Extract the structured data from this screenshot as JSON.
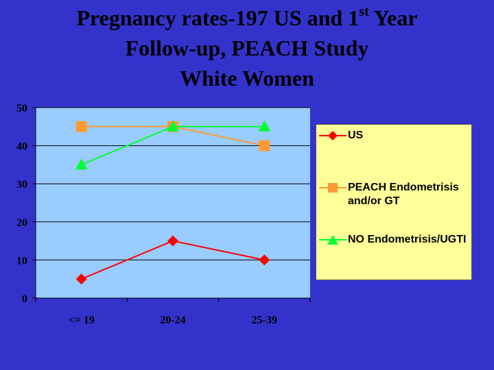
{
  "title": {
    "line1_before": "Pregnancy rates-197 US and 1",
    "line1_sup": "st",
    "line1_after": " Year",
    "line2": "Follow-up, PEACH Study",
    "line3": "White Women"
  },
  "colors": {
    "background": "#3333cc",
    "plot_area": "#99ccff",
    "legend_bg": "#ffff99",
    "us": "#ff0000",
    "peach": "#ff9933",
    "no": "#00ff33"
  },
  "chart_data": {
    "type": "line",
    "title": "Pregnancy rates-197 US and 1st Year Follow-up, PEACH Study White Women",
    "categories": [
      "<= 19",
      "20-24",
      "25-39"
    ],
    "ylim": [
      0,
      50
    ],
    "yticks": [
      0,
      10,
      20,
      30,
      40,
      50
    ],
    "grid": true,
    "legend_position": "right",
    "series": [
      {
        "name": "US",
        "marker": "diamond",
        "color": "#ff0000",
        "values": [
          5,
          15,
          10
        ]
      },
      {
        "name": "PEACH Endometrisis and/or GT",
        "marker": "square",
        "color": "#ff9933",
        "values": [
          45,
          45,
          40
        ]
      },
      {
        "name": "NO Endometrisis/UGTI",
        "marker": "triangle",
        "color": "#00ff33",
        "values": [
          35,
          45,
          45
        ]
      }
    ]
  }
}
